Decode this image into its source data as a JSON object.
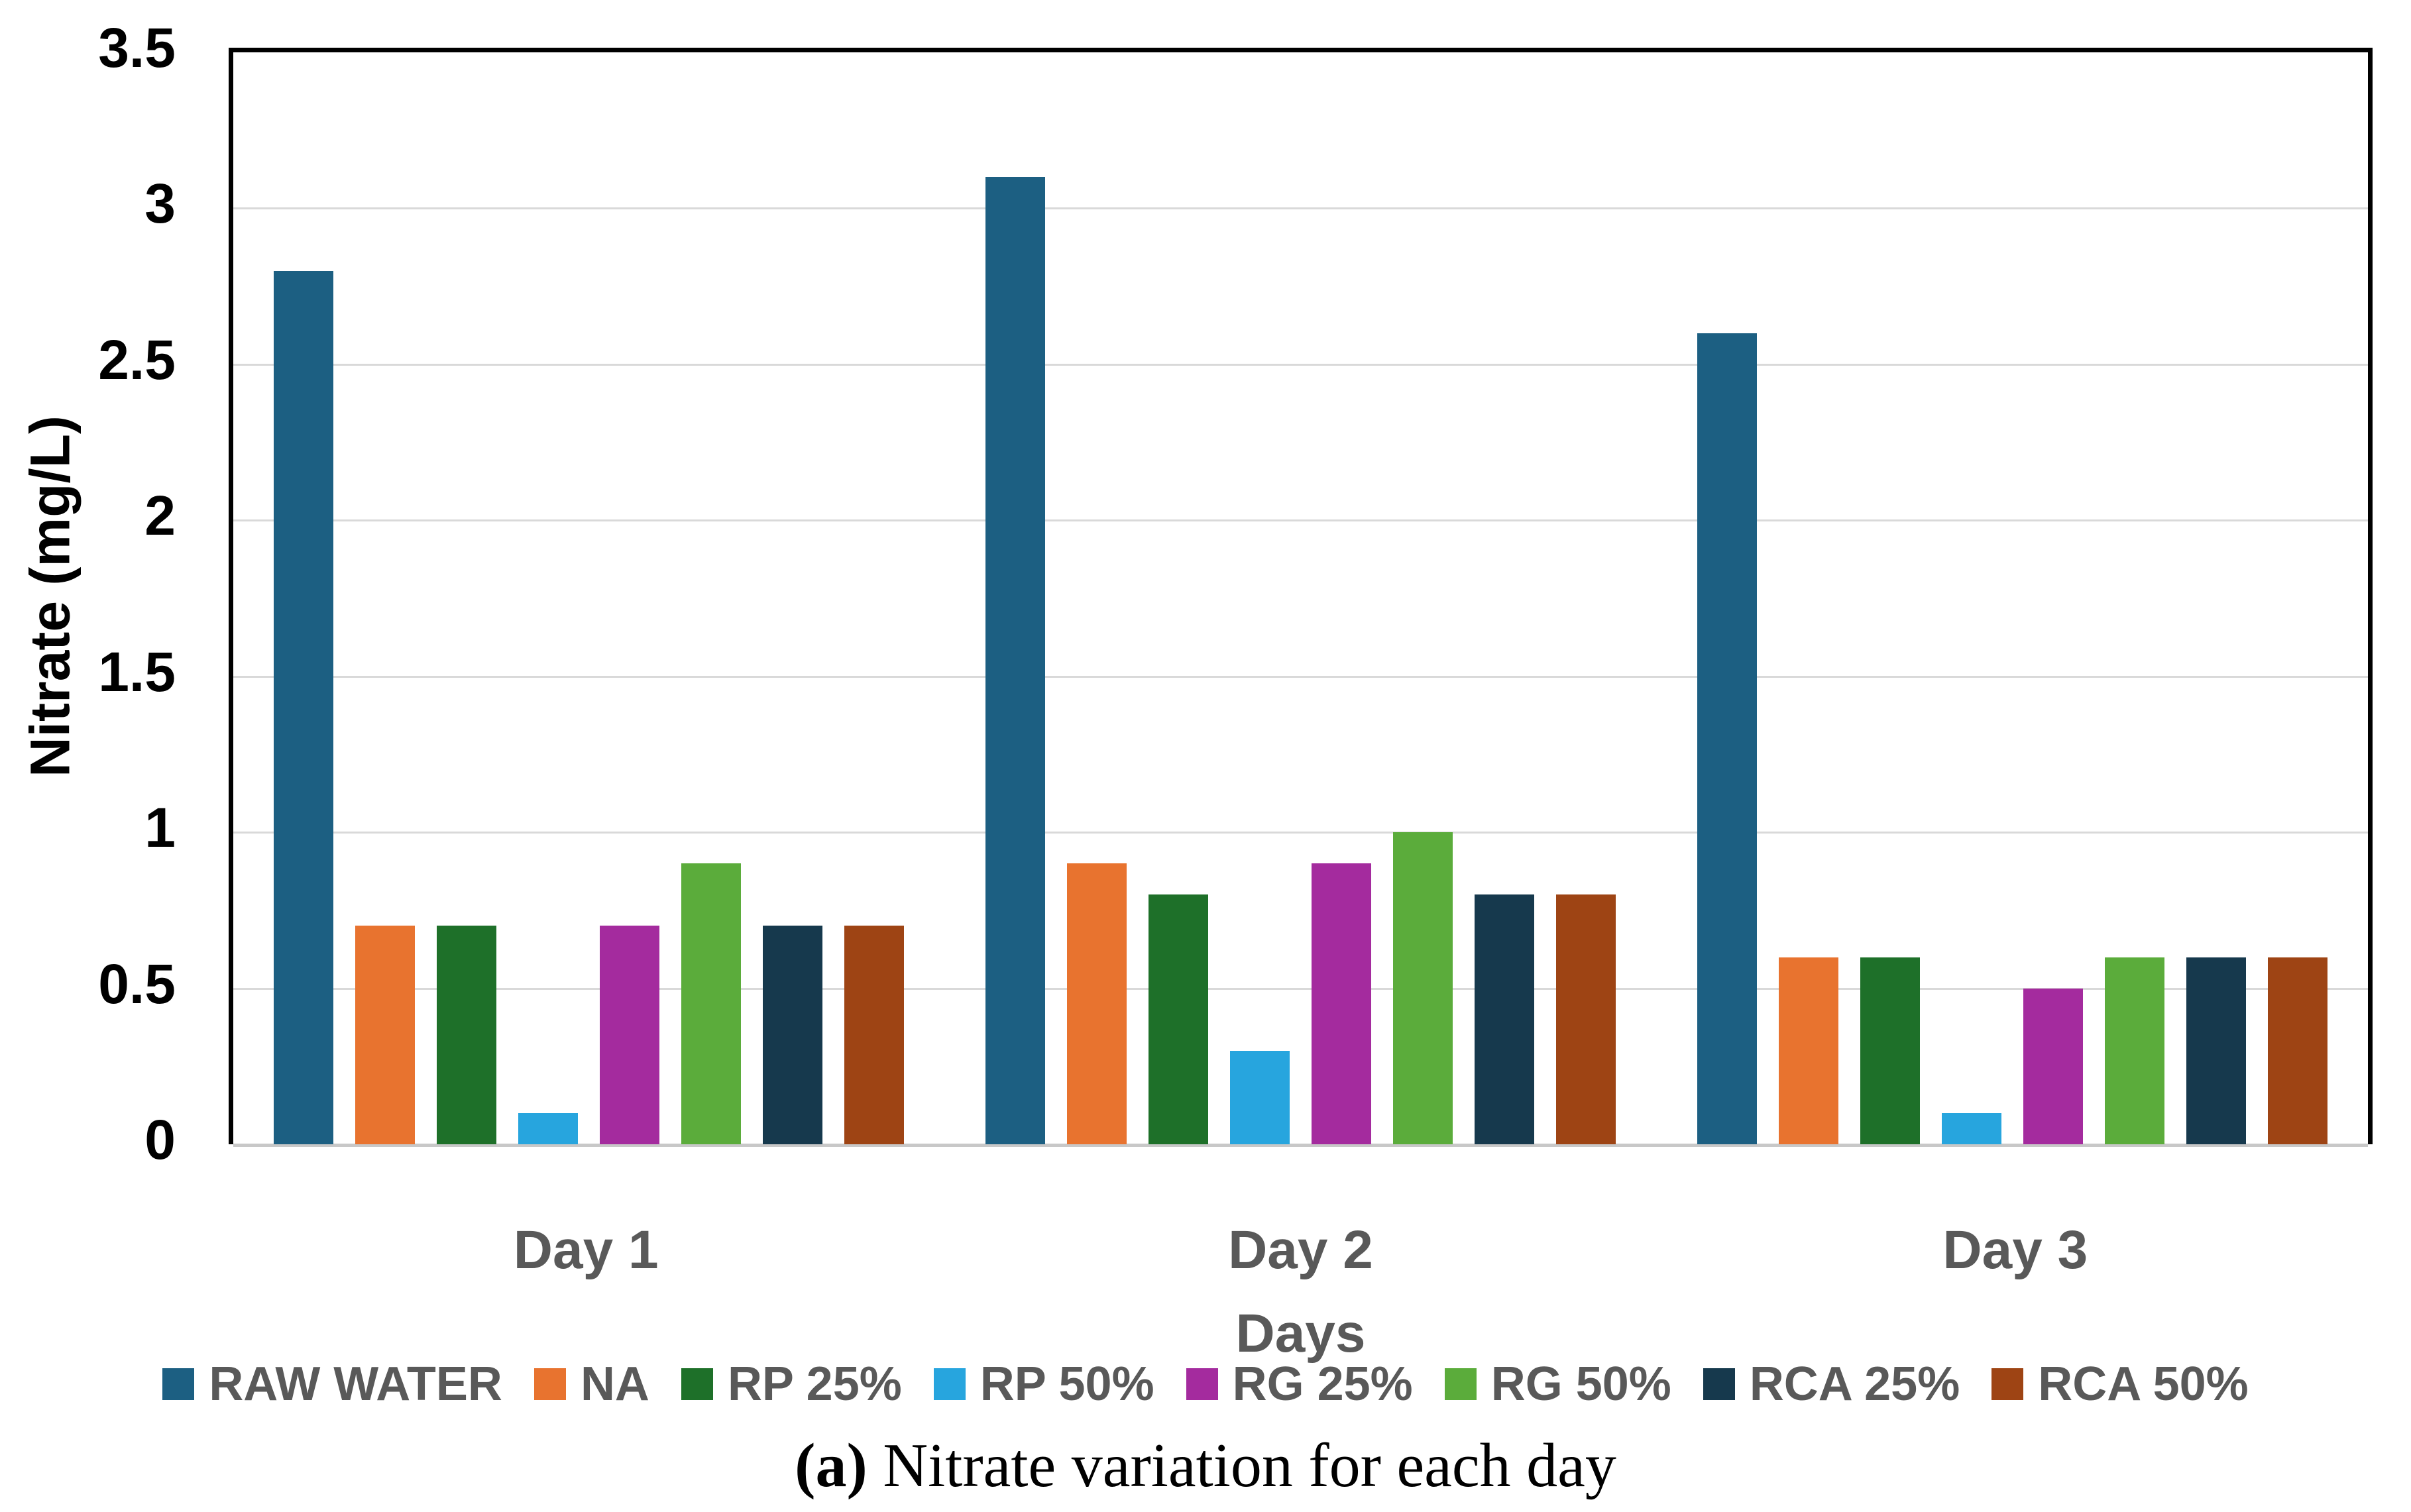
{
  "figure": {
    "caption_label": "(a)",
    "caption_text": " Nitrate variation for each day"
  },
  "chart_data": {
    "type": "bar",
    "title": "",
    "xlabel": "Days",
    "ylabel": "Nitrate (mg/L)",
    "ylim": [
      0,
      3.5
    ],
    "y_tick_labels": [
      "3.5",
      "3",
      "2.5",
      "2",
      "1.5",
      "1",
      "0.5",
      "0"
    ],
    "grid": true,
    "legend_position": "bottom",
    "categories": [
      "Day 1",
      "Day 2",
      "Day 3"
    ],
    "series": [
      {
        "name": "RAW WATER",
        "color": "#1C5F82",
        "values": [
          2.8,
          3.1,
          2.6
        ]
      },
      {
        "name": "NA",
        "color": "#E8732F",
        "values": [
          0.7,
          0.9,
          0.6
        ]
      },
      {
        "name": "RP 25%",
        "color": "#1E7029",
        "values": [
          0.7,
          0.8,
          0.6
        ]
      },
      {
        "name": "RP 50%",
        "color": "#27A5DE",
        "values": [
          0.1,
          0.3,
          0.1
        ]
      },
      {
        "name": "RG 25%",
        "color": "#A42B9E",
        "values": [
          0.7,
          0.9,
          0.5
        ]
      },
      {
        "name": "RG 50%",
        "color": "#5BAC3B",
        "values": [
          0.9,
          1.0,
          0.6
        ]
      },
      {
        "name": "RCA 25%",
        "color": "#16394D",
        "values": [
          0.7,
          0.8,
          0.6
        ]
      },
      {
        "name": "RCA 50%",
        "color": "#9E4414",
        "values": [
          0.7,
          0.8,
          0.6
        ]
      }
    ]
  }
}
